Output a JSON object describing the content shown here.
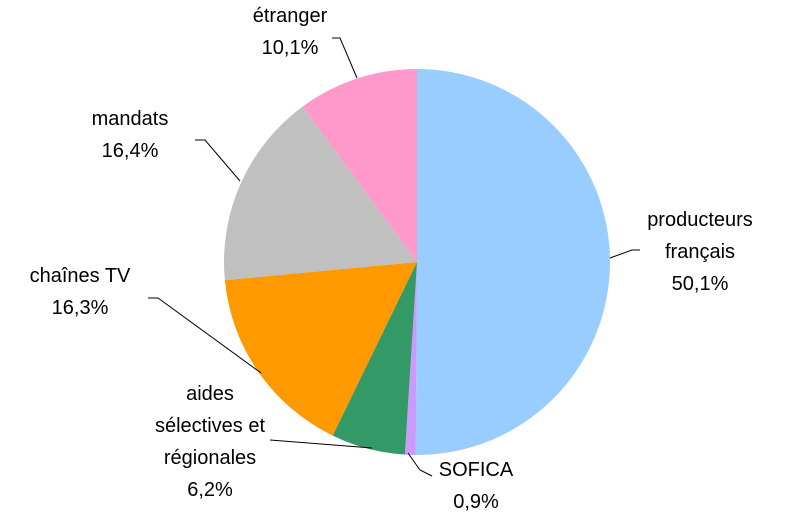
{
  "chart_data": {
    "type": "pie",
    "categories": [
      "producteurs\nfrançais",
      "SOFICA",
      "aides\nsélectives et\nrégionales",
      "chaînes TV",
      "mandats",
      "étranger"
    ],
    "values": [
      50.1,
      0.9,
      6.2,
      16.3,
      16.4,
      10.1
    ],
    "value_labels": [
      "50,1%",
      "0,9%",
      "6,2%",
      "16,3%",
      "16,4%",
      "10,1%"
    ],
    "colors": [
      "#99ccff",
      "#cc99ff",
      "#339966",
      "#ff9900",
      "#c0c0c0",
      "#ff99cc"
    ]
  }
}
